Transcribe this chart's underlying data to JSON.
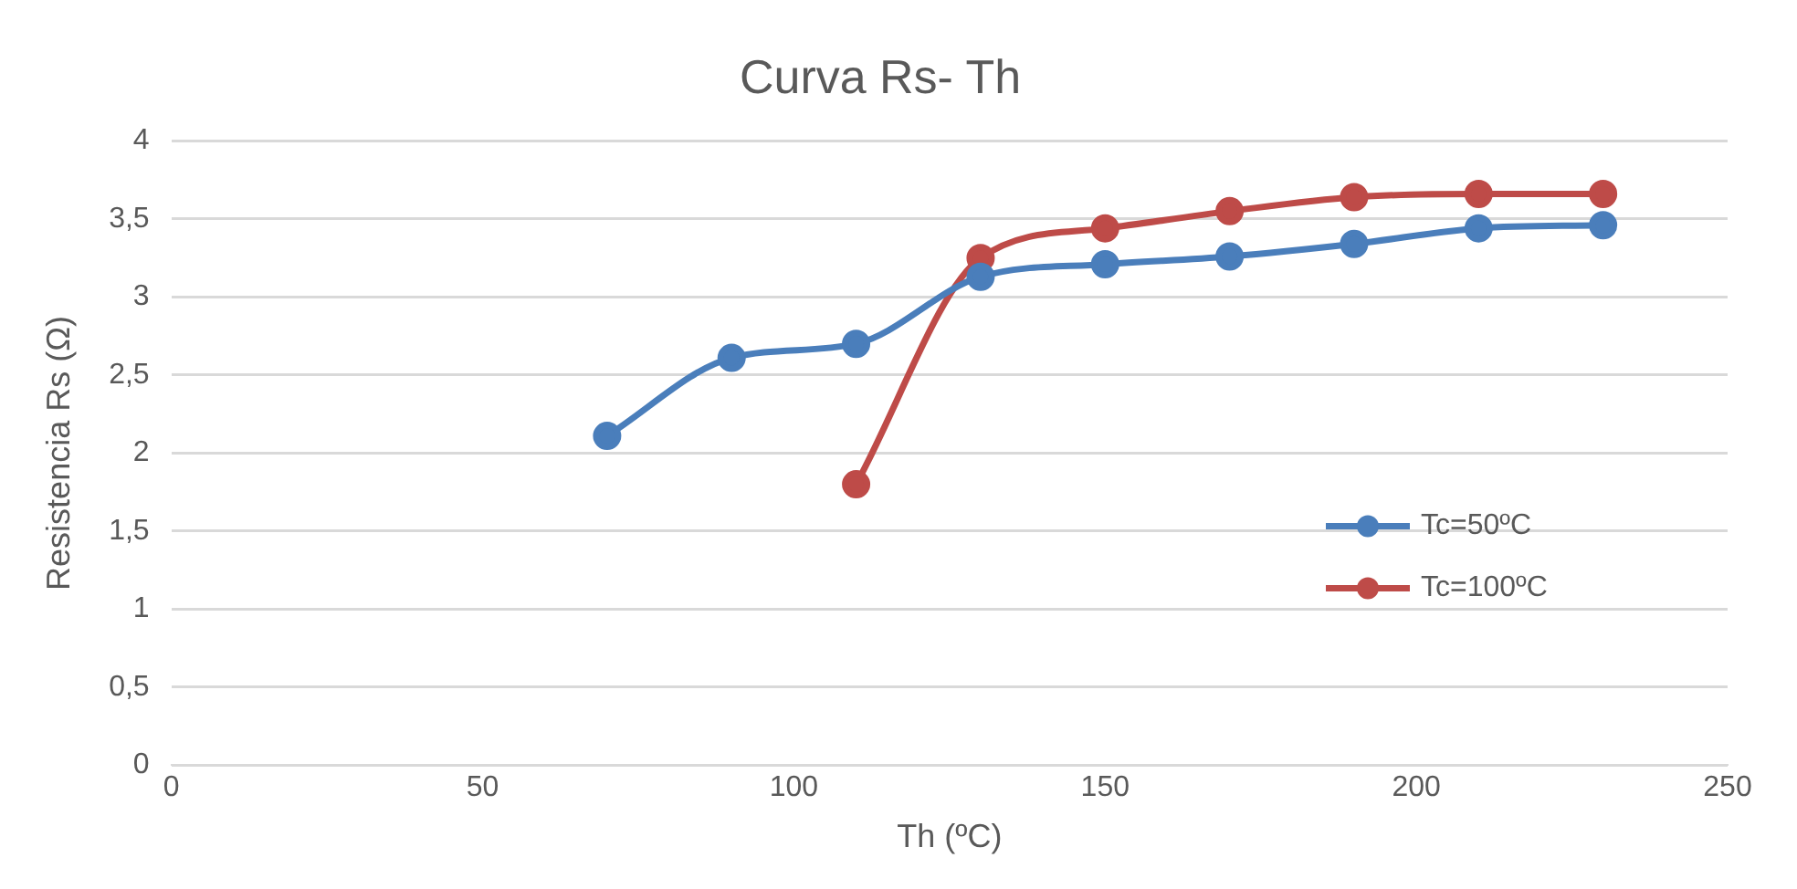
{
  "chart_data": {
    "type": "line",
    "title": "Curva Rs- Th",
    "xlabel": "Th (ºC)",
    "ylabel": "Resistencia Rs (Ω)",
    "xlim": [
      0,
      250
    ],
    "xticks": [
      0,
      50,
      100,
      150,
      200,
      250
    ],
    "ylim": [
      0,
      4
    ],
    "yticks": [
      0,
      {
        "value": 0.5,
        "label": "0,5"
      },
      1,
      {
        "value": 1.5,
        "label": "1,5"
      },
      2,
      {
        "value": 2.5,
        "label": "2,5"
      },
      3,
      {
        "value": 3.5,
        "label": "3,5"
      },
      4
    ],
    "grid": "y",
    "legend": "right",
    "marker": "circle",
    "line_style": "solid",
    "series": [
      {
        "name": "Tc=50ºC",
        "color": "#4a7ebb",
        "x": [
          70,
          90,
          110,
          130,
          150,
          170,
          190,
          210,
          230
        ],
        "values": [
          2.11,
          2.61,
          2.7,
          3.13,
          3.21,
          3.26,
          3.34,
          3.44,
          3.46
        ]
      },
      {
        "name": "Tc=100ºC",
        "color": "#be4b48",
        "x": [
          110,
          130,
          150,
          170,
          190,
          210,
          230
        ],
        "values": [
          1.8,
          3.25,
          3.44,
          3.55,
          3.64,
          3.66,
          3.66
        ]
      }
    ]
  }
}
